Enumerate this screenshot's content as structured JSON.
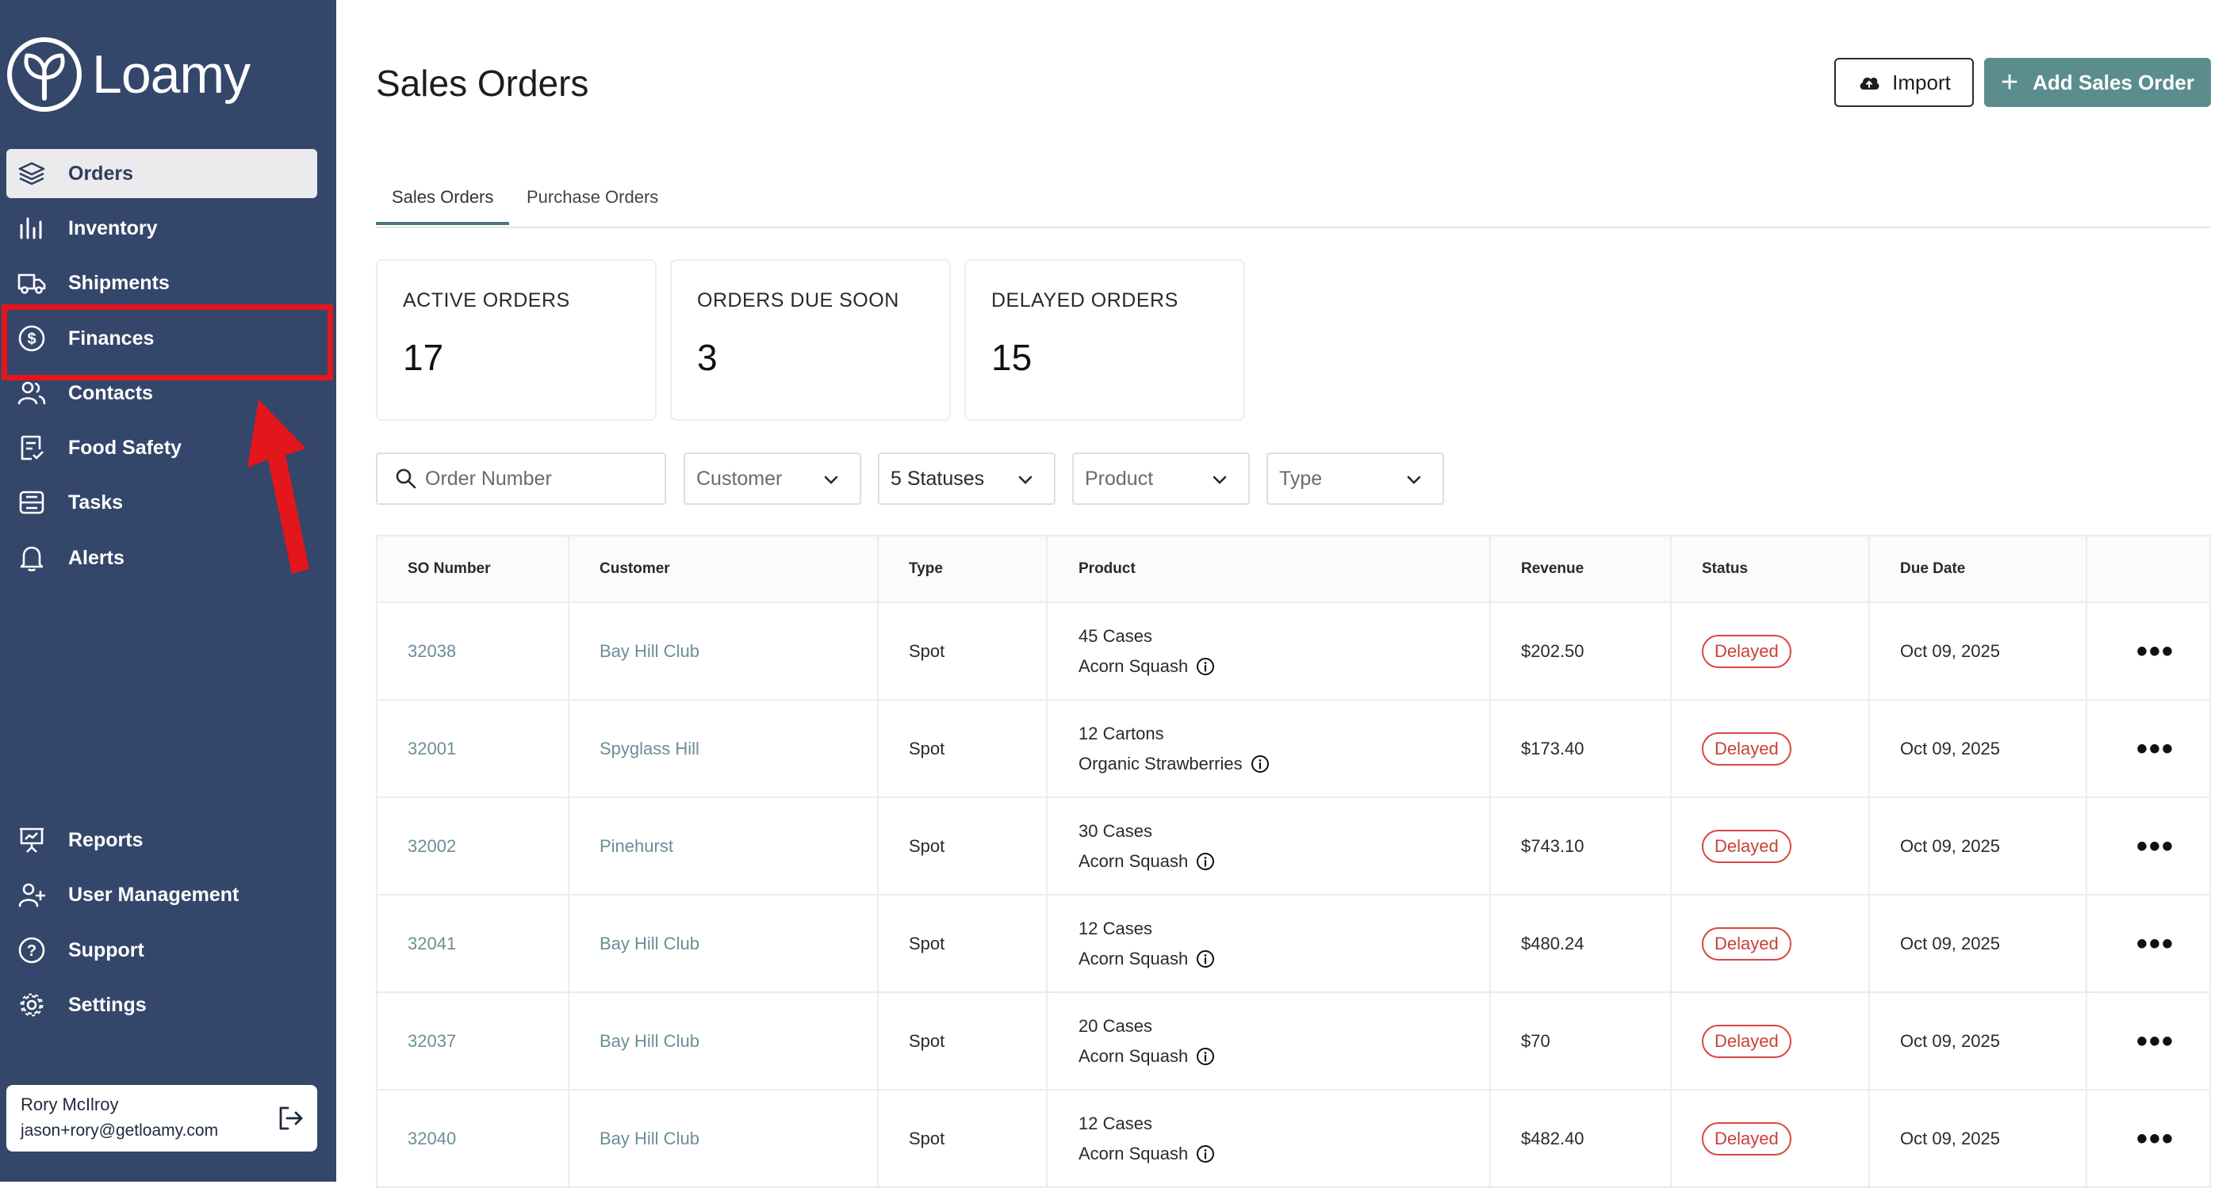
{
  "app": {
    "name": "Loamy"
  },
  "sidebar": {
    "items": [
      {
        "label": "Orders",
        "icon": "layers-icon",
        "active": true
      },
      {
        "label": "Inventory",
        "icon": "bar-chart-icon"
      },
      {
        "label": "Shipments",
        "icon": "truck-icon"
      },
      {
        "label": "Finances",
        "icon": "dollar-circle-icon"
      },
      {
        "label": "Contacts",
        "icon": "users-icon"
      },
      {
        "label": "Food Safety",
        "icon": "clipboard-check-icon"
      },
      {
        "label": "Tasks",
        "icon": "tasks-icon"
      },
      {
        "label": "Alerts",
        "icon": "bell-icon"
      }
    ],
    "bottom_items": [
      {
        "label": "Reports",
        "icon": "presentation-icon"
      },
      {
        "label": "User Management",
        "icon": "user-plus-icon"
      },
      {
        "label": "Support",
        "icon": "help-circle-icon"
      },
      {
        "label": "Settings",
        "icon": "gear-icon"
      }
    ],
    "user": {
      "name": "Rory McIlroy",
      "email": "jason+rory@getloamy.com"
    }
  },
  "header": {
    "title": "Sales Orders",
    "import_label": "Import",
    "add_label": "Add Sales Order"
  },
  "tabs": [
    {
      "label": "Sales Orders",
      "active": true
    },
    {
      "label": "Purchase Orders",
      "active": false
    }
  ],
  "stats": [
    {
      "label": "ACTIVE ORDERS",
      "value": "17"
    },
    {
      "label": "ORDERS DUE SOON",
      "value": "3"
    },
    {
      "label": "DELAYED ORDERS",
      "value": "15"
    }
  ],
  "filters": {
    "search_placeholder": "Order Number",
    "customer": "Customer",
    "statuses": "5 Statuses",
    "product": "Product",
    "type": "Type"
  },
  "table": {
    "columns": [
      "SO Number",
      "Customer",
      "Type",
      "Product",
      "Revenue",
      "Status",
      "Due Date"
    ],
    "rows": [
      {
        "so": "32038",
        "customer": "Bay Hill Club",
        "type": "Spot",
        "qty": "45 Cases",
        "product": "Acorn Squash",
        "revenue": "$202.50",
        "status": "Delayed",
        "due": "Oct 09, 2025"
      },
      {
        "so": "32001",
        "customer": "Spyglass Hill",
        "type": "Spot",
        "qty": "12 Cartons",
        "product": "Organic Strawberries",
        "revenue": "$173.40",
        "status": "Delayed",
        "due": "Oct 09, 2025"
      },
      {
        "so": "32002",
        "customer": "Pinehurst",
        "type": "Spot",
        "qty": "30 Cases",
        "product": "Acorn Squash",
        "revenue": "$743.10",
        "status": "Delayed",
        "due": "Oct 09, 2025"
      },
      {
        "so": "32041",
        "customer": "Bay Hill Club",
        "type": "Spot",
        "qty": "12 Cases",
        "product": "Acorn Squash",
        "revenue": "$480.24",
        "status": "Delayed",
        "due": "Oct 09, 2025"
      },
      {
        "so": "32037",
        "customer": "Bay Hill Club",
        "type": "Spot",
        "qty": "20 Cases",
        "product": "Acorn Squash",
        "revenue": "$70",
        "status": "Delayed",
        "due": "Oct 09, 2025"
      },
      {
        "so": "32040",
        "customer": "Bay Hill Club",
        "type": "Spot",
        "qty": "12 Cases",
        "product": "Acorn Squash",
        "revenue": "$482.40",
        "status": "Delayed",
        "due": "Oct 09, 2025"
      }
    ]
  },
  "colors": {
    "sidebar": "#34466a",
    "accent": "#5b8d8f",
    "link": "#6a8f96",
    "delayed": "#d9473f",
    "annotation": "#e3161b"
  }
}
